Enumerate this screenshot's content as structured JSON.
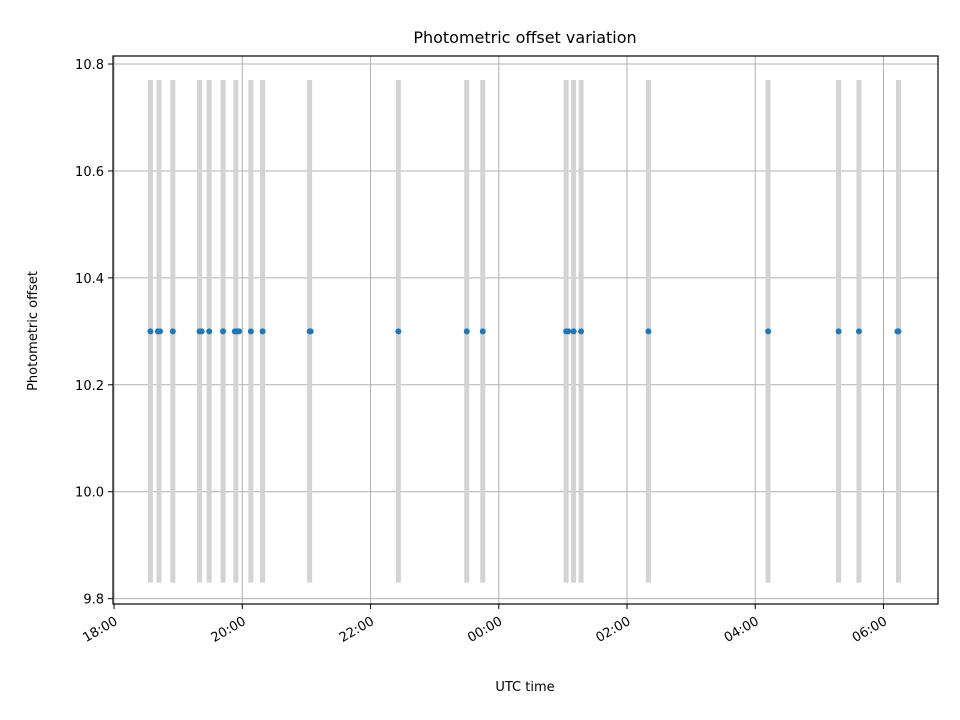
{
  "chart_data": {
    "type": "scatter",
    "title": "Photometric offset variation",
    "xlabel": "UTC time",
    "ylabel": "Photometric offset",
    "x_unit": "UTC time of night (18:00 to 06:30)",
    "xlim": [
      "17:59",
      "06:51"
    ],
    "ylim": [
      9.79,
      10.815
    ],
    "x_ticks": [
      "18:00",
      "20:00",
      "22:00",
      "00:00",
      "02:00",
      "04:00",
      "06:00"
    ],
    "y_ticks": [
      "9.8",
      "10.0",
      "10.2",
      "10.4",
      "10.6",
      "10.8"
    ],
    "grid": true,
    "points": {
      "color": "#1f77b4",
      "x": [
        "18:34",
        "18:41",
        "18:43",
        "18:55",
        "19:20",
        "19:22",
        "19:29",
        "19:42",
        "19:53",
        "19:55",
        "19:57",
        "20:08",
        "20:19",
        "21:03",
        "21:04",
        "22:26",
        "23:30",
        "23:45",
        "01:03",
        "01:05",
        "01:10",
        "01:17",
        "02:20",
        "04:12",
        "05:18",
        "05:37",
        "06:13",
        "06:14"
      ],
      "y": [
        10.3,
        10.3,
        10.3,
        10.3,
        10.3,
        10.3,
        10.3,
        10.3,
        10.3,
        10.3,
        10.3,
        10.3,
        10.3,
        10.3,
        10.3,
        10.3,
        10.3,
        10.3,
        10.3,
        10.3,
        10.3,
        10.3,
        10.3,
        10.3,
        10.3,
        10.3,
        10.3,
        10.3
      ]
    },
    "vertical_bands": {
      "color": "#d3d3d3",
      "y_range": [
        9.83,
        10.77
      ],
      "x": [
        "18:34",
        "18:42",
        "18:55",
        "19:20",
        "19:29",
        "19:42",
        "19:54",
        "20:08",
        "20:19",
        "21:03",
        "22:26",
        "23:30",
        "23:45",
        "01:03",
        "01:10",
        "01:17",
        "02:20",
        "04:12",
        "05:18",
        "05:37",
        "06:14"
      ]
    }
  }
}
